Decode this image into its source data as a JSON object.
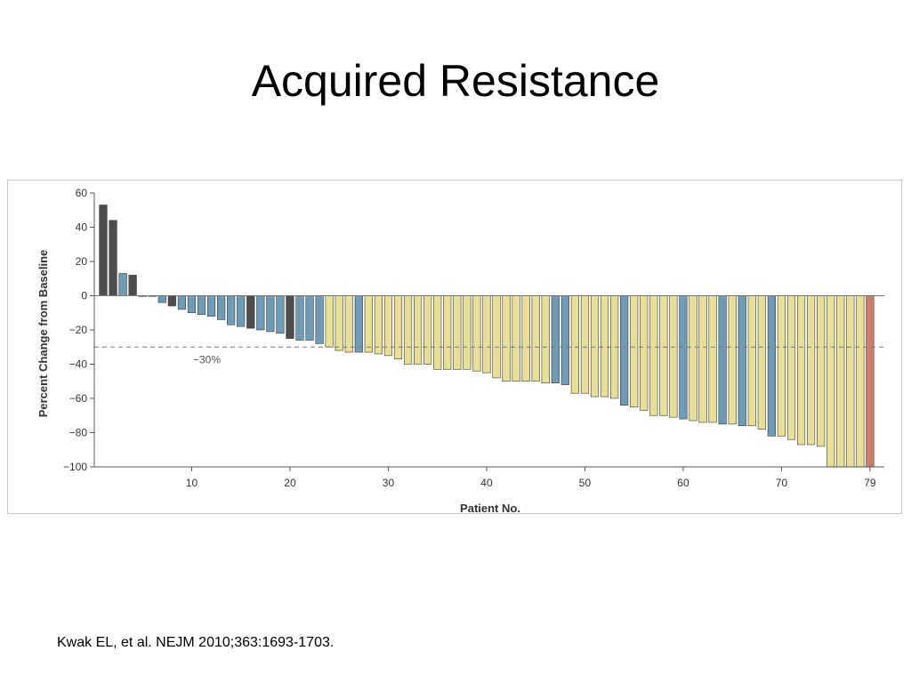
{
  "slide": {
    "title": "Acquired Resistance",
    "citation": "Kwak EL, et al. NEJM 2010;363:1693-1703."
  },
  "colors": {
    "dark": "#4d4d4f",
    "blue": "#6e9cb6",
    "yellow": "#e7df95",
    "red": "#cf7d6b"
  },
  "chart_data": {
    "type": "bar",
    "xlabel": "Patient No.",
    "ylabel": "Percent Change from Baseline",
    "ylim": [
      -100,
      60
    ],
    "yticks": [
      60,
      40,
      20,
      0,
      -20,
      -40,
      -60,
      -80,
      -100
    ],
    "ytick_labels": [
      "60",
      "40",
      "20",
      "0",
      "−20",
      "−40",
      "−60",
      "−80",
      "−100"
    ],
    "xticks": [
      10,
      20,
      30,
      40,
      50,
      60,
      70,
      79
    ],
    "reference_line": {
      "value": -30,
      "label": "−30%"
    },
    "grid": false,
    "x": [
      1,
      2,
      3,
      4,
      5,
      6,
      7,
      8,
      9,
      10,
      11,
      12,
      13,
      14,
      15,
      16,
      17,
      18,
      19,
      20,
      21,
      22,
      23,
      24,
      25,
      26,
      27,
      28,
      29,
      30,
      31,
      32,
      33,
      34,
      35,
      36,
      37,
      38,
      39,
      40,
      41,
      42,
      43,
      44,
      45,
      46,
      47,
      48,
      49,
      50,
      51,
      52,
      53,
      54,
      55,
      56,
      57,
      58,
      59,
      60,
      61,
      62,
      63,
      64,
      65,
      66,
      67,
      68,
      69,
      70,
      71,
      72,
      73,
      74,
      75,
      76,
      77,
      78,
      79
    ],
    "values": [
      53,
      44,
      13,
      12,
      0,
      0,
      -4,
      -6,
      -8,
      -10,
      -11,
      -12,
      -14,
      -17,
      -18,
      -19,
      -20,
      -21,
      -22,
      -25,
      -26,
      -26,
      -28,
      -30,
      -32,
      -33,
      -33,
      -33,
      -34,
      -35,
      -37,
      -40,
      -40,
      -40,
      -43,
      -43,
      -43,
      -43,
      -44,
      -45,
      -48,
      -50,
      -50,
      -50,
      -50,
      -51,
      -51,
      -52,
      -57,
      -57,
      -59,
      -59,
      -60,
      -64,
      -65,
      -67,
      -70,
      -70,
      -71,
      -72,
      -73,
      -74,
      -74,
      -75,
      -75,
      -76,
      -76,
      -78,
      -82,
      -82,
      -84,
      -87,
      -87,
      -88,
      -100,
      -100,
      -100,
      -100,
      -100
    ],
    "colors": [
      "dark",
      "dark",
      "blue",
      "dark",
      "dark",
      "dark",
      "blue",
      "dark",
      "blue",
      "blue",
      "blue",
      "blue",
      "blue",
      "blue",
      "blue",
      "dark",
      "blue",
      "blue",
      "blue",
      "dark",
      "blue",
      "blue",
      "blue",
      "yellow",
      "yellow",
      "yellow",
      "blue",
      "yellow",
      "yellow",
      "yellow",
      "yellow",
      "yellow",
      "yellow",
      "yellow",
      "yellow",
      "yellow",
      "yellow",
      "yellow",
      "yellow",
      "yellow",
      "yellow",
      "yellow",
      "yellow",
      "yellow",
      "yellow",
      "yellow",
      "blue",
      "blue",
      "yellow",
      "yellow",
      "yellow",
      "yellow",
      "yellow",
      "blue",
      "yellow",
      "yellow",
      "yellow",
      "yellow",
      "yellow",
      "blue",
      "yellow",
      "yellow",
      "yellow",
      "blue",
      "yellow",
      "blue",
      "yellow",
      "yellow",
      "blue",
      "yellow",
      "yellow",
      "yellow",
      "yellow",
      "yellow",
      "yellow",
      "yellow",
      "yellow",
      "yellow",
      "red"
    ]
  }
}
